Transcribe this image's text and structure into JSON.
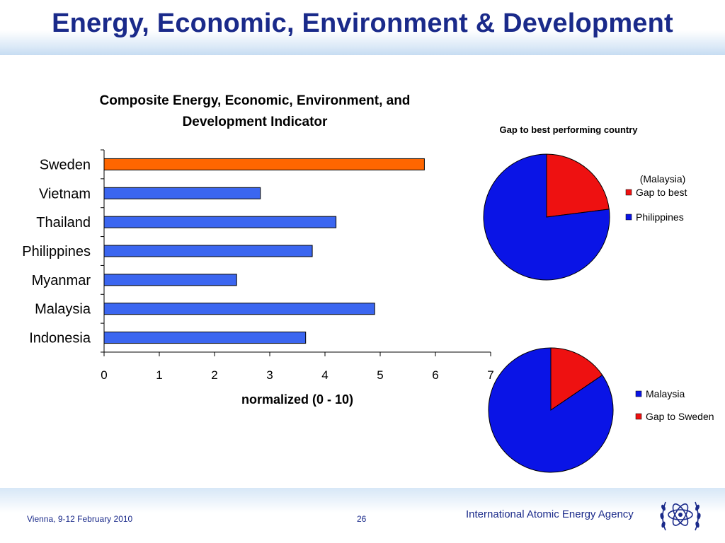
{
  "slide": {
    "title": "Energy, Economic, Environment & Development",
    "footer_left": "Vienna, 9-12 February 2010",
    "page_number": "26",
    "footer_agency": "International Atomic Energy Agency"
  },
  "colors": {
    "title": "#1a2a8a",
    "bar_default": "#3b66f0",
    "bar_highlight": "#ff6600",
    "pie_red": "#ee1111",
    "pie_blue": "#0a14e6"
  },
  "chart_data": [
    {
      "type": "bar",
      "orientation": "horizontal",
      "title_lines": [
        "Composite Energy, Economic, Environment, and",
        "Development Indicator"
      ],
      "categories": [
        "Sweden",
        "Vietnam",
        "Thailand",
        "Philippines",
        "Myanmar",
        "Malaysia",
        "Indonesia"
      ],
      "values": [
        5.8,
        2.83,
        4.2,
        3.77,
        2.4,
        4.9,
        3.65
      ],
      "highlight_category": "Sweden",
      "xlabel": "normalized (0 - 10)",
      "xlim": [
        0,
        7
      ],
      "xticks": [
        0,
        1,
        2,
        3,
        4,
        5,
        6,
        7
      ],
      "grid": false
    },
    {
      "type": "pie",
      "title": "Gap to best performing country",
      "legend_header": "(Malaysia)",
      "legend_position": "right",
      "slices": [
        {
          "label": "Gap to best",
          "value": 23,
          "color": "#ee1111"
        },
        {
          "label": "Philippines",
          "value": 77,
          "color": "#0a14e6"
        }
      ]
    },
    {
      "type": "pie",
      "legend_position": "right",
      "slices": [
        {
          "label": "Gap to Sweden",
          "value": 15.5,
          "color": "#ee1111"
        },
        {
          "label": "Malaysia",
          "value": 84.5,
          "color": "#0a14e6"
        }
      ],
      "legend_order": [
        "Malaysia",
        "Gap to Sweden"
      ]
    }
  ]
}
